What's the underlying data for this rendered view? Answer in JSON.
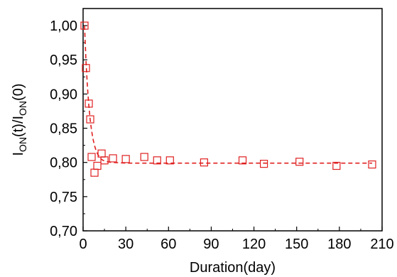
{
  "chart_data": {
    "type": "scatter",
    "xlabel": "Duration(day)",
    "ylabel": {
      "parts": [
        {
          "text": "I",
          "sub": false
        },
        {
          "text": "ON",
          "sub": true
        },
        {
          "text": "(t)/I",
          "sub": false
        },
        {
          "text": "ON",
          "sub": true
        },
        {
          "text": "(0)",
          "sub": false
        }
      ]
    },
    "xlim": [
      0,
      210
    ],
    "ylim": [
      0.7,
      1.0
    ],
    "x_ticks": [
      0,
      30,
      60,
      90,
      120,
      150,
      180,
      210
    ],
    "y_ticks": [
      {
        "value": 0.7,
        "label": "0,70"
      },
      {
        "value": 0.75,
        "label": "0,75"
      },
      {
        "value": 0.8,
        "label": "0,80"
      },
      {
        "value": 0.85,
        "label": "0,85"
      },
      {
        "value": 0.9,
        "label": "0,90"
      },
      {
        "value": 0.95,
        "label": "0,95"
      },
      {
        "value": 1.0,
        "label": "1,00"
      }
    ],
    "series": [
      {
        "marker": "open-square",
        "color": "#e02020",
        "points": [
          {
            "x": 1,
            "y": 1.0
          },
          {
            "x": 2,
            "y": 0.938
          },
          {
            "x": 4,
            "y": 0.886
          },
          {
            "x": 5,
            "y": 0.863
          },
          {
            "x": 6,
            "y": 0.808
          },
          {
            "x": 8,
            "y": 0.785
          },
          {
            "x": 10,
            "y": 0.795
          },
          {
            "x": 13,
            "y": 0.813
          },
          {
            "x": 15,
            "y": 0.803
          },
          {
            "x": 21,
            "y": 0.806
          },
          {
            "x": 30,
            "y": 0.805
          },
          {
            "x": 43,
            "y": 0.808
          },
          {
            "x": 52,
            "y": 0.803
          },
          {
            "x": 61,
            "y": 0.803
          },
          {
            "x": 85,
            "y": 0.8
          },
          {
            "x": 112,
            "y": 0.803
          },
          {
            "x": 127,
            "y": 0.798
          },
          {
            "x": 152,
            "y": 0.801
          },
          {
            "x": 178,
            "y": 0.795
          },
          {
            "x": 203,
            "y": 0.797
          }
        ],
        "fit": {
          "style": "dashed",
          "points": [
            {
              "x": 1,
              "y": 1.0
            },
            {
              "x": 2,
              "y": 0.95
            },
            {
              "x": 3,
              "y": 0.912
            },
            {
              "x": 4,
              "y": 0.884
            },
            {
              "x": 5,
              "y": 0.862
            },
            {
              "x": 6,
              "y": 0.846
            },
            {
              "x": 7,
              "y": 0.834
            },
            {
              "x": 8,
              "y": 0.825
            },
            {
              "x": 9,
              "y": 0.818
            },
            {
              "x": 10,
              "y": 0.813
            },
            {
              "x": 12,
              "y": 0.806
            },
            {
              "x": 14,
              "y": 0.803
            },
            {
              "x": 17,
              "y": 0.801
            },
            {
              "x": 20,
              "y": 0.8
            },
            {
              "x": 30,
              "y": 0.799
            },
            {
              "x": 60,
              "y": 0.799
            },
            {
              "x": 100,
              "y": 0.799
            },
            {
              "x": 150,
              "y": 0.799
            },
            {
              "x": 203,
              "y": 0.799
            }
          ]
        }
      }
    ]
  }
}
